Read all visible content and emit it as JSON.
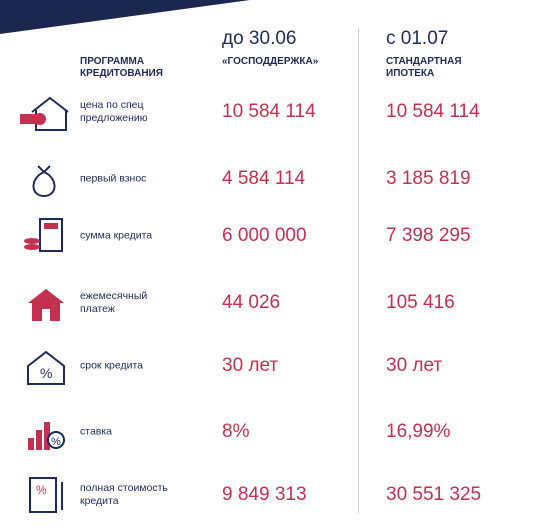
{
  "header": {
    "program": "ПРОГРАММА КРЕДИТОВАНИЯ",
    "col1_date": "до 30.06",
    "col1_name": "«ГОСПОДДЕРЖКА»",
    "col2_date": "с 01.07",
    "col2_name": "СТАНДАРТНАЯ ИПОТЕКА"
  },
  "table": {
    "rows": [
      [
        "цена по спец предложению",
        "10 584 114",
        "10 584 114"
      ],
      [
        "первый взнос",
        "4 584 114",
        "3 185 819"
      ],
      [
        "сумма кредита",
        "6 000 000",
        "7 398 295"
      ],
      [
        "ежемесячный платеж",
        "44 026",
        "105 416"
      ],
      [
        "срок кредита",
        "30 лет",
        "30 лет"
      ],
      [
        "ставка",
        "8%",
        "16,99%"
      ],
      [
        "полная стоимость кредита",
        "9 849 313",
        "30 551 325"
      ]
    ]
  }
}
